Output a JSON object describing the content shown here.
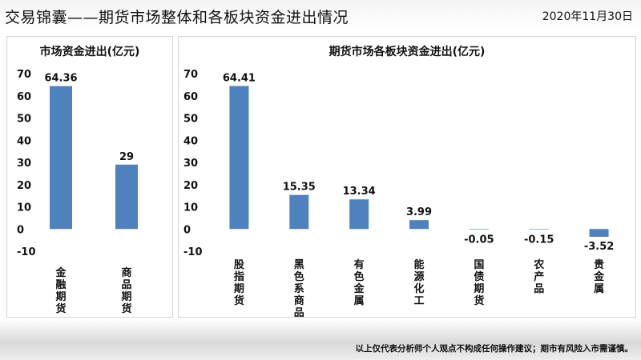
{
  "header": {
    "title": "交易锦囊——期货市场整体和各板块资金进出情况",
    "date": "2020年11月30日"
  },
  "footer": {
    "disclaimer": "以上仅代表分析师个人观点不构成任何操作建议；期市有风险入市需谨慎。"
  },
  "colors": {
    "bar": "#4f81bd"
  },
  "chart_data": [
    {
      "type": "bar",
      "title": "市场资金进出(亿元)",
      "categories": [
        "金融期货",
        "商品期货"
      ],
      "values": [
        64.36,
        29
      ],
      "data_labels": [
        "64.36",
        "29"
      ],
      "ylim": [
        -10,
        70
      ],
      "yticks": [
        70,
        60,
        50,
        40,
        30,
        20,
        10,
        0,
        -10
      ],
      "grid": false,
      "legend": "none"
    },
    {
      "type": "bar",
      "title": "期货市场各板块资金进出(亿元)",
      "categories": [
        "股指期货",
        "黑色系商品",
        "有色金属",
        "能源化工",
        "国债期货",
        "农产品",
        "贵金属"
      ],
      "values": [
        64.41,
        15.35,
        13.34,
        3.99,
        -0.05,
        -0.15,
        -3.52
      ],
      "data_labels": [
        "64.41",
        "15.35",
        "13.34",
        "3.99",
        "-0.05",
        "-0.15",
        "-3.52"
      ],
      "ylim": [
        -10,
        70
      ],
      "yticks": [
        70,
        60,
        50,
        40,
        30,
        20,
        10,
        0,
        -10
      ],
      "grid": false,
      "legend": "none"
    }
  ]
}
